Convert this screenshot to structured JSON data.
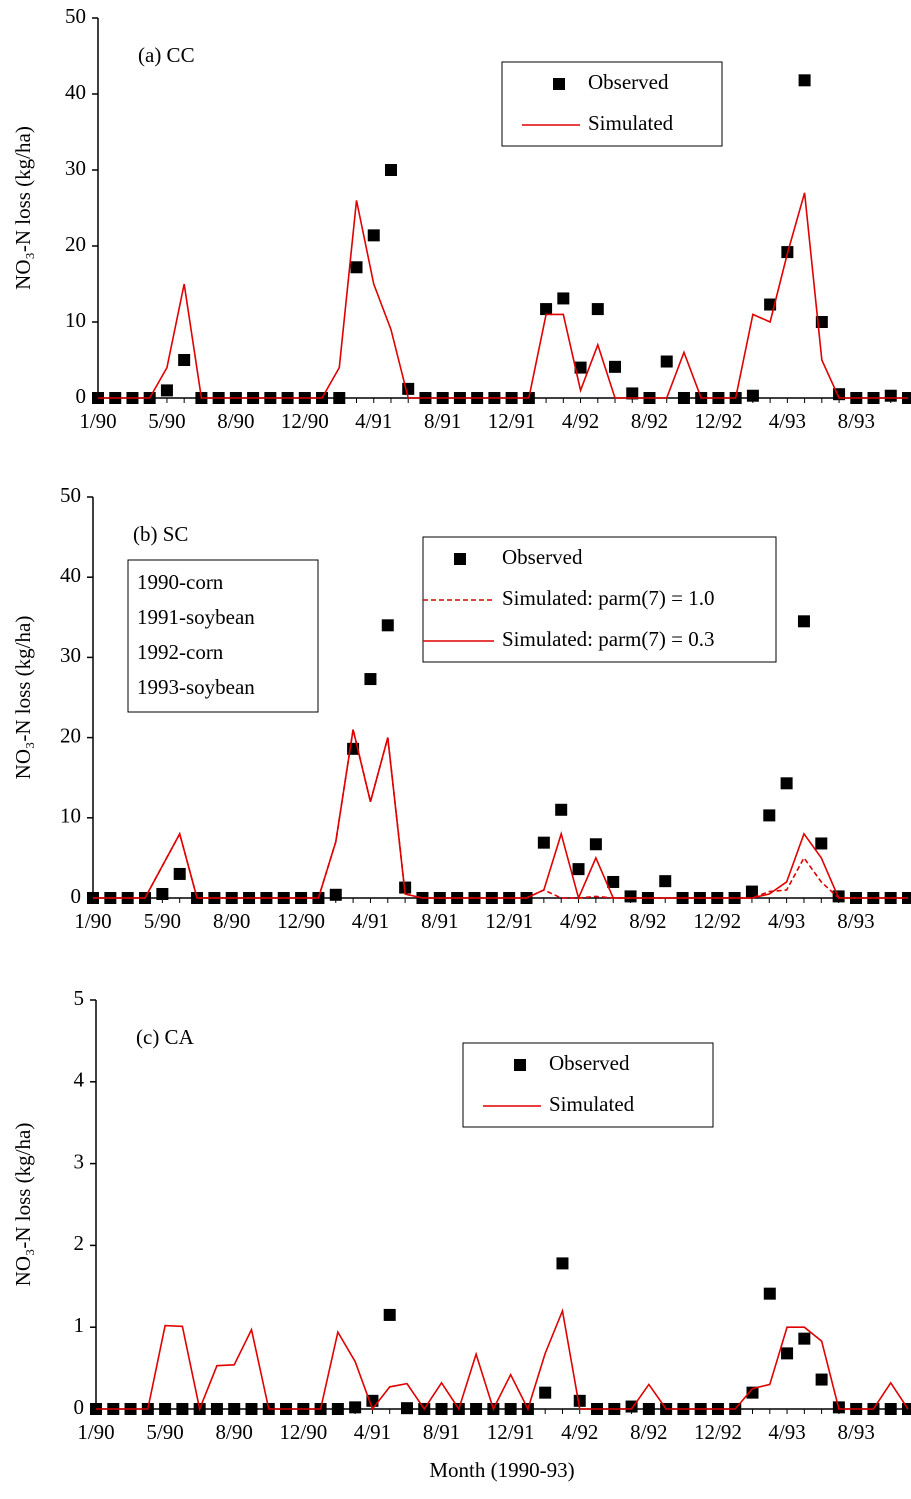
{
  "chart_data": [
    {
      "type": "line",
      "title": "(a) CC",
      "y_label": "NO₃-N loss (kg/ha)",
      "categories": [
        "1/90",
        null,
        null,
        null,
        "5/90",
        null,
        null,
        null,
        "8/90",
        null,
        null,
        null,
        "12/90",
        null,
        null,
        null,
        "4/91",
        null,
        null,
        null,
        "8/91",
        null,
        null,
        null,
        "12/91",
        null,
        null,
        null,
        "4/92",
        null,
        null,
        null,
        "8/92",
        null,
        null,
        null,
        "12/92",
        null,
        null,
        null,
        "4/93",
        null,
        null,
        null,
        "8/93",
        null,
        null,
        null
      ],
      "ylim": [
        0,
        50
      ],
      "yticks": [
        0,
        10,
        20,
        30,
        40,
        50
      ],
      "grid": false,
      "series": [
        {
          "name": "Observed",
          "color": "#000000",
          "style": "marker",
          "values": [
            0,
            0,
            0,
            0,
            1,
            5,
            0,
            0,
            0,
            0,
            0,
            0,
            0,
            0,
            0,
            17.2,
            21.4,
            30,
            1.2,
            0,
            0,
            0,
            0,
            0,
            0,
            0,
            11.7,
            13.1,
            4,
            11.7,
            4.1,
            0.6,
            0,
            4.8,
            0,
            0,
            0,
            0,
            0.3,
            12.3,
            19.2,
            41.8,
            10,
            0.5,
            0,
            0,
            0.3,
            0
          ]
        },
        {
          "name": "Simulated",
          "color": "#e00000",
          "style": "solid",
          "values": [
            0,
            0,
            0,
            0,
            4,
            15,
            0,
            0,
            0,
            0,
            0,
            0,
            0,
            0,
            4,
            26,
            15,
            9,
            0,
            0,
            0,
            0,
            0,
            0,
            0,
            0,
            11,
            11,
            1,
            7,
            0,
            0,
            0,
            0,
            6,
            0,
            0,
            0,
            11,
            10,
            19,
            27,
            5,
            0,
            0,
            0,
            0,
            0
          ]
        }
      ]
    },
    {
      "type": "line",
      "title": "(b) SC",
      "y_label": "NO₃-N loss (kg/ha)",
      "annotations": [
        "1990-corn",
        "1991-soybean",
        "1992-corn",
        "1993-soybean"
      ],
      "categories": [
        "1/90",
        null,
        null,
        null,
        "5/90",
        null,
        null,
        null,
        "8/90",
        null,
        null,
        null,
        "12/90",
        null,
        null,
        null,
        "4/91",
        null,
        null,
        null,
        "8/91",
        null,
        null,
        null,
        "12/91",
        null,
        null,
        null,
        "4/92",
        null,
        null,
        null,
        "8/92",
        null,
        null,
        null,
        "12/92",
        null,
        null,
        null,
        "4/93",
        null,
        null,
        null,
        "8/93",
        null,
        null,
        null
      ],
      "ylim": [
        0,
        50
      ],
      "yticks": [
        0,
        10,
        20,
        30,
        40,
        50
      ],
      "grid": false,
      "series": [
        {
          "name": "Observed",
          "color": "#000000",
          "style": "marker",
          "values": [
            0,
            0,
            0,
            0,
            0.5,
            3,
            0,
            0,
            0,
            0,
            0,
            0,
            0,
            0,
            0.4,
            18.6,
            27.3,
            34,
            1.3,
            0,
            0,
            0,
            0,
            0,
            0,
            0,
            6.9,
            11,
            3.6,
            6.7,
            2,
            0.2,
            0,
            2.1,
            0,
            0,
            0,
            0,
            0.8,
            10.3,
            14.3,
            34.5,
            6.8,
            0.2,
            0,
            0,
            0,
            0
          ]
        },
        {
          "name": "Simulated: parm(7) = 1.0",
          "color": "#e00000",
          "style": "dashed",
          "values": [
            0,
            0,
            0,
            0,
            4,
            8,
            0,
            0,
            0,
            0,
            0,
            0,
            0,
            0,
            7,
            21,
            12,
            20,
            0.5,
            0,
            0,
            0,
            0,
            0,
            0,
            0,
            1,
            0,
            0,
            0.2,
            0,
            0,
            0,
            0,
            0,
            0,
            0,
            0,
            0,
            0.8,
            1,
            5,
            2,
            0,
            0,
            0,
            0,
            0
          ]
        },
        {
          "name": "Simulated: parm(7) = 0.3",
          "color": "#e00000",
          "style": "solid",
          "values": [
            0,
            0,
            0,
            0,
            4,
            8,
            0,
            0,
            0,
            0,
            0,
            0,
            0,
            0,
            7,
            21,
            12,
            20,
            0.5,
            0,
            0,
            0,
            0,
            0,
            0,
            0,
            1,
            8,
            0,
            5,
            0,
            0,
            0,
            0,
            0,
            0,
            0,
            0,
            0,
            0.5,
            2,
            8,
            5,
            0,
            0,
            0,
            0,
            0
          ]
        }
      ]
    },
    {
      "type": "line",
      "title": "(c) CA",
      "y_label": "NO₃-N loss (kg/ha)",
      "x_label": "Month (1990-93)",
      "categories": [
        "1/90",
        null,
        null,
        null,
        "5/90",
        null,
        null,
        null,
        "8/90",
        null,
        null,
        null,
        "12/90",
        null,
        null,
        null,
        "4/91",
        null,
        null,
        null,
        "8/91",
        null,
        null,
        null,
        "12/91",
        null,
        null,
        null,
        "4/92",
        null,
        null,
        null,
        "8/92",
        null,
        null,
        null,
        "12/92",
        null,
        null,
        null,
        "4/93",
        null,
        null,
        null,
        "8/93",
        null,
        null,
        null
      ],
      "ylim": [
        0,
        5
      ],
      "yticks": [
        0,
        1,
        2,
        3,
        4,
        5
      ],
      "grid": false,
      "series": [
        {
          "name": "Observed",
          "color": "#000000",
          "style": "marker",
          "values": [
            0,
            0,
            0,
            0,
            0,
            0,
            0,
            0,
            0,
            0,
            0,
            0,
            0,
            0,
            0,
            0.02,
            0.1,
            1.15,
            0.01,
            0,
            0,
            0,
            0,
            0,
            0,
            0,
            0.2,
            1.78,
            0.1,
            0,
            0,
            0.03,
            0,
            0,
            0,
            0,
            0,
            0,
            0.2,
            1.41,
            0.68,
            0.86,
            0.36,
            0.02,
            0,
            0,
            0,
            0
          ]
        },
        {
          "name": "Simulated",
          "color": "#e00000",
          "style": "solid",
          "values": [
            0,
            0,
            0,
            0,
            1.02,
            1.01,
            0,
            0.53,
            0.54,
            0.97,
            0,
            0,
            0,
            0,
            0.94,
            0.58,
            0,
            0.27,
            0.31,
            0,
            0.32,
            0,
            0.67,
            0,
            0.42,
            0,
            0.68,
            1.2,
            0,
            0,
            0,
            0,
            0.3,
            0,
            0,
            0,
            0,
            0,
            0.25,
            0.3,
            1.0,
            1.0,
            0.83,
            0,
            0,
            0,
            0.32,
            0
          ]
        }
      ]
    }
  ]
}
